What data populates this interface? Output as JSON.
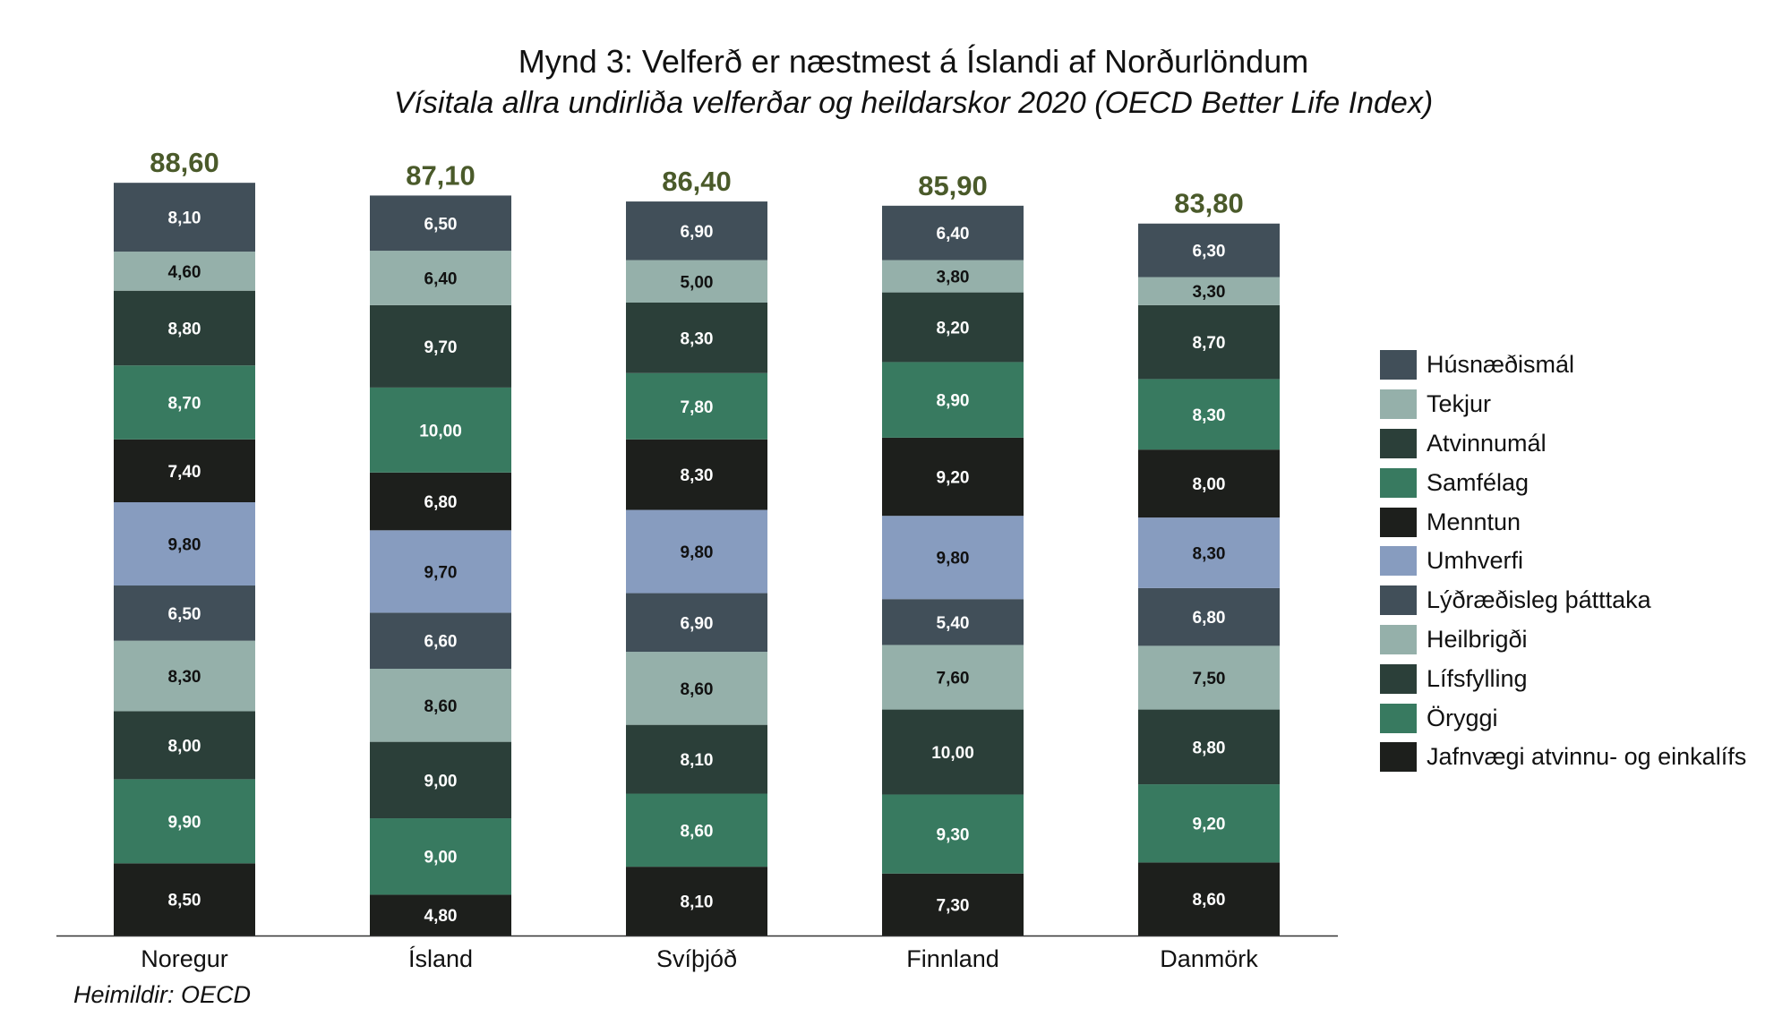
{
  "chart_data": {
    "type": "stacked-bar",
    "title": "Mynd 3: Velferð er næstmest á Íslandi af Norðurlöndum",
    "subtitle": "Vísitala allra undirliða velferðar og heildarskor 2020 (OECD Better Life Index)",
    "source": "Heimildir: OECD",
    "categories": [
      "Noregur",
      "Ísland",
      "Svíþjóð",
      "Finnland",
      "Danmörk"
    ],
    "totals": [
      "88,60",
      "87,10",
      "86,40",
      "85,90",
      "83,80"
    ],
    "total_values": [
      88.6,
      87.1,
      86.4,
      85.9,
      83.8
    ],
    "legend_position": "right",
    "series": [
      {
        "name": "Jafnvægi atvinnu- og einkalífs",
        "color": "#1d1f1c",
        "label_color": "#ffffff",
        "values": [
          8.5,
          4.8,
          8.1,
          7.3,
          8.6
        ]
      },
      {
        "name": "Öryggi",
        "color": "#387a60",
        "label_color": "#ffffff",
        "values": [
          9.9,
          9.0,
          8.6,
          9.3,
          9.2
        ]
      },
      {
        "name": "Lífsfylling",
        "color": "#2b3f39",
        "label_color": "#ffffff",
        "values": [
          8.0,
          9.0,
          8.1,
          10.0,
          8.8
        ]
      },
      {
        "name": "Heilbrigði",
        "color": "#95b0aa",
        "label_color": "#111111",
        "values": [
          8.3,
          8.6,
          8.6,
          7.6,
          7.5
        ]
      },
      {
        "name": "Lýðræðisleg þátttaka",
        "color": "#414f59",
        "label_color": "#ffffff",
        "values": [
          6.5,
          6.6,
          6.9,
          5.4,
          6.8
        ]
      },
      {
        "name": "Umhverfi",
        "color": "#879cbf",
        "label_color": "#111111",
        "values": [
          9.8,
          9.7,
          9.8,
          9.8,
          8.3
        ]
      },
      {
        "name": "Menntun",
        "color": "#1d1f1c",
        "label_color": "#ffffff",
        "values": [
          7.4,
          6.8,
          8.3,
          9.2,
          8.0
        ]
      },
      {
        "name": "Samfélag",
        "color": "#387a60",
        "label_color": "#ffffff",
        "values": [
          8.7,
          10.0,
          7.8,
          8.9,
          8.3
        ]
      },
      {
        "name": "Atvinnumál",
        "color": "#2b3f39",
        "label_color": "#ffffff",
        "values": [
          8.8,
          9.7,
          8.3,
          8.2,
          8.7
        ]
      },
      {
        "name": "Tekjur",
        "color": "#95b0aa",
        "label_color": "#111111",
        "values": [
          4.6,
          6.4,
          5.0,
          3.8,
          3.3
        ]
      },
      {
        "name": "Húsnæðismál",
        "color": "#414f59",
        "label_color": "#ffffff",
        "values": [
          8.1,
          6.5,
          6.9,
          6.4,
          6.3
        ]
      }
    ],
    "legend_order": [
      "Húsnæðismál",
      "Tekjur",
      "Atvinnumál",
      "Samfélag",
      "Menntun",
      "Umhverfi",
      "Lýðræðisleg þátttaka",
      "Heilbrigði",
      "Lífsfylling",
      "Öryggi",
      "Jafnvægi atvinnu- og einkalífs"
    ],
    "total_color": "#4a5a2a",
    "ylim": [
      0,
      90
    ],
    "grid": false,
    "decimal_separator": ","
  }
}
